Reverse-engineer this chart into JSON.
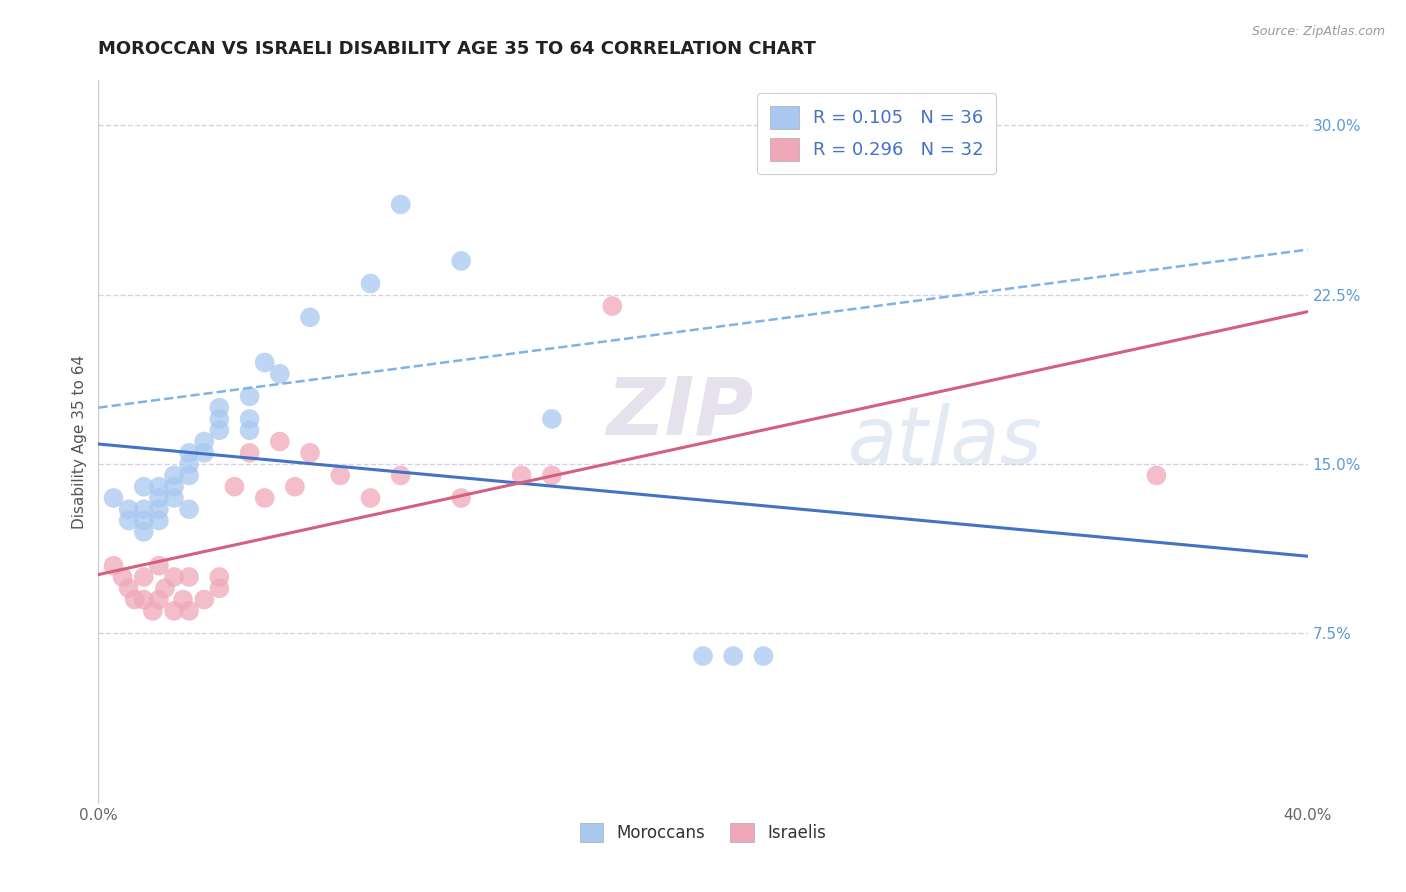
{
  "title": "MOROCCAN VS ISRAELI DISABILITY AGE 35 TO 64 CORRELATION CHART",
  "source": "Source: ZipAtlas.com",
  "ylabel": "Disability Age 35 to 64",
  "xlim": [
    0.0,
    0.4
  ],
  "ylim": [
    0.0,
    0.32
  ],
  "xticks": [
    0.0,
    0.1,
    0.2,
    0.3,
    0.4
  ],
  "xtick_labels": [
    "0.0%",
    "",
    "",
    "",
    "40.0%"
  ],
  "yticks": [
    0.075,
    0.15,
    0.225,
    0.3
  ],
  "ytick_labels": [
    "7.5%",
    "15.0%",
    "22.5%",
    "30.0%"
  ],
  "blue_color": "#a8c8f0",
  "pink_color": "#f0a8b8",
  "trend_blue_solid": "#4472c4",
  "trend_blue_dashed": "#7eb3e8",
  "trend_pink": "#d46080",
  "background": "#ffffff",
  "grid_color": "#d8d0e8",
  "moroccan_x": [
    0.005,
    0.01,
    0.01,
    0.015,
    0.015,
    0.015,
    0.015,
    0.02,
    0.02,
    0.02,
    0.02,
    0.025,
    0.025,
    0.025,
    0.03,
    0.03,
    0.03,
    0.03,
    0.035,
    0.035,
    0.04,
    0.04,
    0.04,
    0.05,
    0.05,
    0.05,
    0.055,
    0.06,
    0.07,
    0.09,
    0.1,
    0.12,
    0.15,
    0.2,
    0.21,
    0.22
  ],
  "moroccan_y": [
    0.135,
    0.13,
    0.125,
    0.14,
    0.13,
    0.125,
    0.12,
    0.14,
    0.135,
    0.13,
    0.125,
    0.145,
    0.14,
    0.135,
    0.155,
    0.15,
    0.145,
    0.13,
    0.16,
    0.155,
    0.165,
    0.175,
    0.17,
    0.18,
    0.17,
    0.165,
    0.195,
    0.19,
    0.215,
    0.23,
    0.265,
    0.24,
    0.17,
    0.065,
    0.065,
    0.065
  ],
  "israeli_x": [
    0.005,
    0.008,
    0.01,
    0.012,
    0.015,
    0.015,
    0.018,
    0.02,
    0.02,
    0.022,
    0.025,
    0.025,
    0.028,
    0.03,
    0.03,
    0.035,
    0.04,
    0.04,
    0.045,
    0.05,
    0.055,
    0.06,
    0.065,
    0.07,
    0.08,
    0.09,
    0.1,
    0.12,
    0.14,
    0.15,
    0.17,
    0.35
  ],
  "israeli_y": [
    0.105,
    0.1,
    0.095,
    0.09,
    0.1,
    0.09,
    0.085,
    0.105,
    0.09,
    0.095,
    0.1,
    0.085,
    0.09,
    0.1,
    0.085,
    0.09,
    0.095,
    0.1,
    0.14,
    0.155,
    0.135,
    0.16,
    0.14,
    0.155,
    0.145,
    0.135,
    0.145,
    0.135,
    0.145,
    0.145,
    0.22,
    0.145
  ],
  "watermark_zip": "ZIP",
  "watermark_atlas": "atlas",
  "title_fontsize": 13,
  "axis_label_fontsize": 11,
  "tick_fontsize": 11,
  "marker_size": 200
}
